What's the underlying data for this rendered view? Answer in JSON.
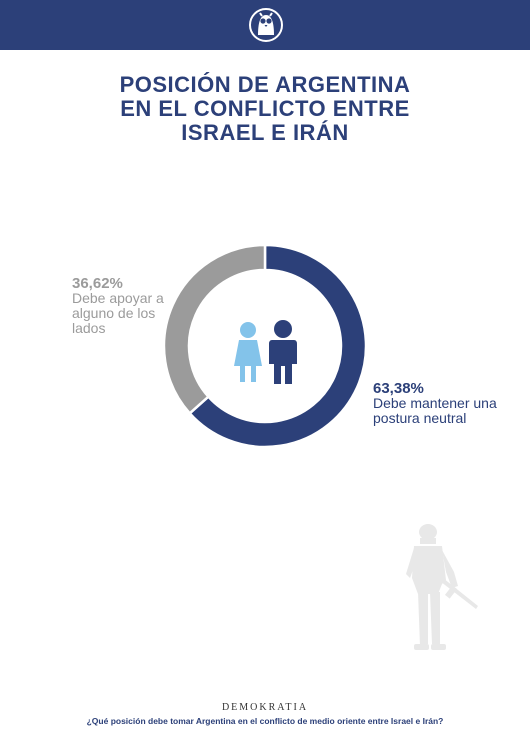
{
  "header": {
    "logo_icon": "owl-icon",
    "bar_color": "#2c4079"
  },
  "title_lines": [
    "POSICIÓN DE ARGENTINA",
    "EN EL CONFLICTO ENTRE",
    "ISRAEL E IRÁN"
  ],
  "chart_data": {
    "type": "pie",
    "title": "POSICIÓN DE ARGENTINA EN EL CONFLICTO ENTRE ISRAEL E IRÁN",
    "style": "donut",
    "slices": [
      {
        "label": "Debe mantener una postura neutral",
        "value": 63.38,
        "display": "63,38%",
        "color": "#2c4079"
      },
      {
        "label": "Debe apoyar a alguno de los lados",
        "value": 36.62,
        "display": "36,62%",
        "color": "#9b9b9b"
      }
    ],
    "center_icon": "people-icon"
  },
  "labels": {
    "gray": {
      "pct": "36,62%",
      "lines": [
        "Debe apoyar a",
        "alguno de los",
        "lados"
      ]
    },
    "blue": {
      "pct": "63,38%",
      "lines": [
        "Debe mantener una",
        "postura neutral"
      ]
    }
  },
  "decoration": {
    "soldier_icon": "soldier-silhouette-icon"
  },
  "footer": {
    "brand": "DEMOKRATIA",
    "question": "¿Qué posición debe tomar Argentina en el conflicto de medio oriente entre Israel e Irán?"
  }
}
